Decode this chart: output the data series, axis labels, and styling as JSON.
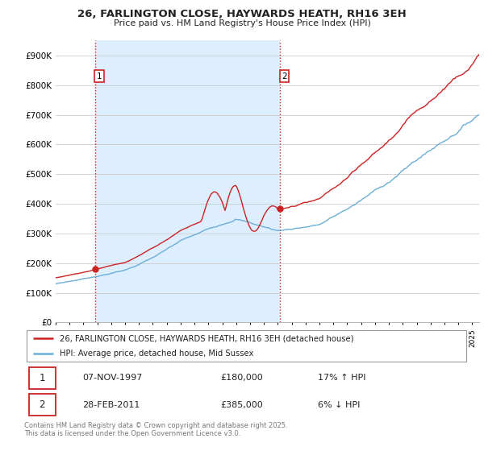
{
  "title_line1": "26, FARLINGTON CLOSE, HAYWARDS HEATH, RH16 3EH",
  "title_line2": "Price paid vs. HM Land Registry's House Price Index (HPI)",
  "ylim": [
    0,
    950000
  ],
  "yticks": [
    0,
    100000,
    200000,
    300000,
    400000,
    500000,
    600000,
    700000,
    800000,
    900000
  ],
  "ytick_labels": [
    "£0",
    "£100K",
    "£200K",
    "£300K",
    "£400K",
    "£500K",
    "£600K",
    "£700K",
    "£800K",
    "£900K"
  ],
  "legend_entry1": "26, FARLINGTON CLOSE, HAYWARDS HEATH, RH16 3EH (detached house)",
  "legend_entry2": "HPI: Average price, detached house, Mid Sussex",
  "marker1_date": "07-NOV-1997",
  "marker1_price": 180000,
  "marker1_hpi": "17% ↑ HPI",
  "marker2_date": "28-FEB-2011",
  "marker2_price": 385000,
  "marker2_hpi": "6% ↓ HPI",
  "sale1_year": 1997.833,
  "sale2_year": 2011.167,
  "line1_color": "#cc2222",
  "line2_color": "#6baed6",
  "shade_color": "#ddeeff",
  "vline_color": "#cc2222",
  "grid_color": "#cccccc",
  "bg_color": "#ffffff",
  "footer": "Contains HM Land Registry data © Crown copyright and database right 2025.\nThis data is licensed under the Open Government Licence v3.0."
}
